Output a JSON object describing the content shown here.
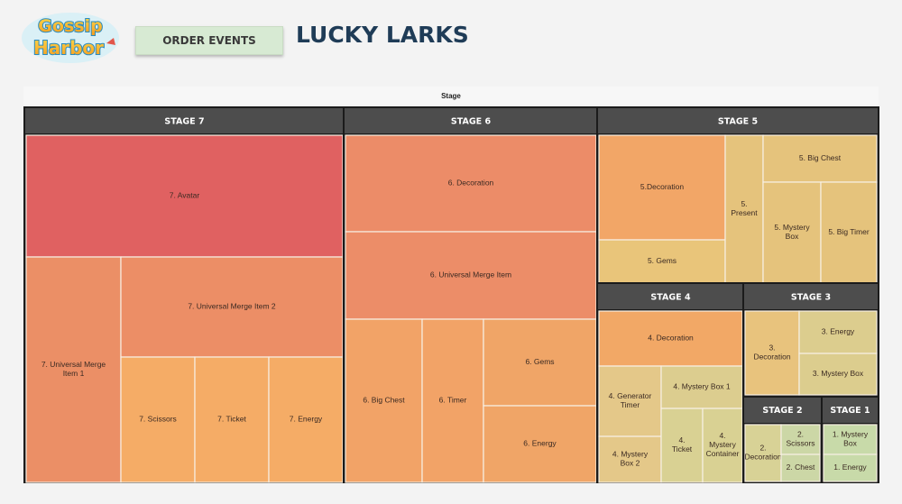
{
  "header": {
    "logo_text": "Gossip Harbor",
    "tag_label": "ORDER EVENTS",
    "title": "LUCKY LARKS"
  },
  "chart_data": {
    "type": "treemap",
    "title": "Stage",
    "group_header_color": "#4d4d4d",
    "groups": [
      {
        "name": "STAGE 7",
        "items": [
          {
            "label": "7. Avatar",
            "color": "#e06161"
          },
          {
            "label": "7. Universal Merge Item 1",
            "color": "#eb8f66"
          },
          {
            "label": "7. Universal Merge Item 2",
            "color": "#ec8e66"
          },
          {
            "label": "7. Scissors",
            "color": "#f5ac66"
          },
          {
            "label": "7. Ticket",
            "color": "#f5ac66"
          },
          {
            "label": "7. Energy",
            "color": "#f5ac66"
          }
        ]
      },
      {
        "name": "STAGE 6",
        "items": [
          {
            "label": "6. Decoration",
            "color": "#ec8c68"
          },
          {
            "label": "6. Universal Merge Item",
            "color": "#ec8d68"
          },
          {
            "label": "6. Big Chest",
            "color": "#f2a367"
          },
          {
            "label": "6. Timer",
            "color": "#f2a367"
          },
          {
            "label": "6. Gems",
            "color": "#f0a567"
          },
          {
            "label": "6. Energy",
            "color": "#f0a567"
          }
        ]
      },
      {
        "name": "STAGE 5",
        "items": [
          {
            "label": "5.Decoration",
            "color": "#f2a667"
          },
          {
            "label": "5. Gems",
            "color": "#e9c57a"
          },
          {
            "label": "5. Present",
            "color": "#e5c37c"
          },
          {
            "label": "5. Big Chest",
            "color": "#e5c37c"
          },
          {
            "label": "5. Mystery Box",
            "color": "#e5c37c"
          },
          {
            "label": "5. Big Timer",
            "color": "#e5c37c"
          }
        ]
      },
      {
        "name": "STAGE 4",
        "items": [
          {
            "label": "4. Decoration",
            "color": "#f2a866"
          },
          {
            "label": "4. Generator Timer",
            "color": "#e4c889"
          },
          {
            "label": "4. Mystery Box 1",
            "color": "#dccd8f"
          },
          {
            "label": "4. Mystery Box 2",
            "color": "#e4c889"
          },
          {
            "label": "4. Ticket",
            "color": "#d9d193"
          },
          {
            "label": "4. Mystery Container",
            "color": "#d9d193"
          }
        ]
      },
      {
        "name": "STAGE 3",
        "items": [
          {
            "label": "3. Decoration",
            "color": "#e8c37d"
          },
          {
            "label": "3. Energy",
            "color": "#dccd8e"
          },
          {
            "label": "3. Mystery Box",
            "color": "#dccd8e"
          }
        ]
      },
      {
        "name": "STAGE 2",
        "items": [
          {
            "label": "2. Decoration",
            "color": "#d8d296"
          },
          {
            "label": "2. Scissors",
            "color": "#ccd7a6"
          },
          {
            "label": "2. Chest",
            "color": "#ccd7a6"
          }
        ]
      },
      {
        "name": "STAGE 1",
        "items": [
          {
            "label": "1. Mystery Box",
            "color": "#c8daa9"
          },
          {
            "label": "1. Energy",
            "color": "#c8daa9"
          }
        ]
      }
    ]
  }
}
